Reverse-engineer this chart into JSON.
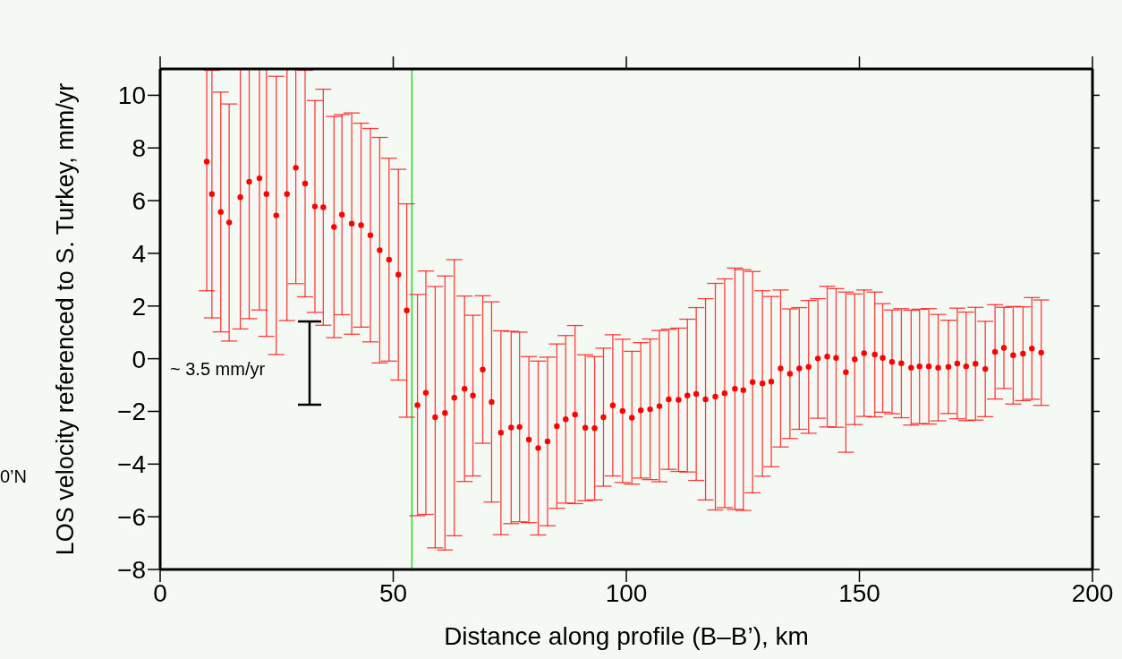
{
  "chart_data": {
    "type": "scatter",
    "xlabel": "Distance along profile (B–B’), km",
    "ylabel": "LOS velocity referenced to S. Turkey, mm/yr",
    "annotations": [
      "~ 3.5 mm/yr",
      "0’N"
    ],
    "x": [
      10.0,
      11.1,
      13.0,
      14.8,
      17.2,
      19.1,
      21.3,
      22.8,
      24.9,
      27.2,
      29.1,
      31.1,
      33.2,
      35.0,
      37.3,
      39.0,
      41.1,
      43.1,
      45.1,
      47.1,
      49.1,
      51.1,
      52.9,
      55.2,
      57.0,
      59.0,
      61.1,
      63.1,
      65.3,
      67.1,
      69.2,
      71.1,
      73.1,
      75.3,
      77.1,
      79.1,
      81.1,
      83.1,
      85.1,
      87.0,
      89.0,
      91.2,
      93.2,
      95.1,
      97.1,
      99.2,
      101.2,
      103.1,
      105.1,
      107.1,
      109.1,
      111.2,
      113.1,
      115.0,
      117.0,
      119.1,
      121.1,
      123.3,
      125.1,
      127.1,
      129.2,
      131.1,
      133.1,
      135.1,
      137.1,
      139.1,
      141.1,
      143.1,
      145.0,
      147.1,
      149.0,
      151.0,
      153.3,
      155.0,
      157.0,
      159.0,
      161.1,
      162.9,
      164.9,
      166.9,
      169.1,
      171.0,
      172.9,
      174.9,
      177.0,
      179.1,
      181.0,
      183.0,
      185.1,
      187.0,
      189.0
    ],
    "values": [
      7.48,
      6.25,
      5.57,
      5.17,
      6.13,
      6.72,
      6.85,
      6.25,
      5.44,
      6.25,
      7.25,
      6.65,
      5.78,
      5.75,
      5.0,
      5.47,
      5.13,
      5.07,
      4.69,
      4.12,
      3.76,
      3.19,
      1.83,
      -1.76,
      -1.29,
      -2.22,
      -2.06,
      -1.48,
      -1.14,
      -1.4,
      -0.41,
      -1.64,
      -2.81,
      -2.61,
      -2.59,
      -3.07,
      -3.39,
      -3.14,
      -2.56,
      -2.3,
      -2.12,
      -2.62,
      -2.64,
      -2.22,
      -1.77,
      -1.98,
      -2.24,
      -1.96,
      -1.92,
      -1.8,
      -1.54,
      -1.56,
      -1.4,
      -1.34,
      -1.54,
      -1.44,
      -1.31,
      -1.14,
      -1.19,
      -0.89,
      -0.94,
      -0.87,
      -0.37,
      -0.57,
      -0.37,
      -0.31,
      0.01,
      0.08,
      0.03,
      -0.51,
      -0.02,
      0.21,
      0.16,
      0.03,
      -0.12,
      -0.17,
      -0.34,
      -0.29,
      -0.29,
      -0.34,
      -0.31,
      -0.18,
      -0.29,
      -0.19,
      -0.39,
      0.26,
      0.41,
      0.13,
      0.19,
      0.39,
      0.23
    ],
    "errors": [
      [
        2.58,
        11
      ],
      4.7,
      4.55,
      4.5,
      [
        1.13,
        11
      ],
      [
        1.52,
        11
      ],
      [
        1.85,
        11
      ],
      [
        0.85,
        11
      ],
      5.28,
      [
        1.45,
        11
      ],
      [
        2.85,
        11
      ],
      4.3,
      4.02,
      4.48,
      4.2,
      3.8,
      4.2,
      3.87,
      4.05,
      4.28,
      3.85,
      4.0,
      4.05,
      4.2,
      4.62,
      4.96,
      5.2,
      5.24,
      3.52,
      3.05,
      2.8,
      3.8,
      3.87,
      3.65,
      3.6,
      3.15,
      3.3,
      3.2,
      3.12,
      3.18,
      3.38,
      2.77,
      2.72,
      2.62,
      2.68,
      2.72,
      2.52,
      2.57,
      2.67,
      2.87,
      2.66,
      2.72,
      2.9,
      3.28,
      3.82,
      4.3,
      4.34,
      4.58,
      4.57,
      4.2,
      3.52,
      3.23,
      2.98,
      2.46,
      2.31,
      2.52,
      2.27,
      2.67,
      2.63,
      3.04,
      2.48,
      2.4,
      2.37,
      2.06,
      1.97,
      2.07,
      2.18,
      2.17,
      2.19,
      2.02,
      1.77,
      2.1,
      2.06,
      2.14,
      1.81,
      1.79,
      1.54,
      1.85,
      1.78,
      1.93,
      2.0
    ],
    "color": "#ff0000",
    "marker": "circle",
    "xlim": [
      0,
      200
    ],
    "xticks": [
      0,
      50,
      100,
      150,
      200
    ],
    "ylim": [
      -8,
      11
    ],
    "yticks": [
      -8,
      -6,
      -4,
      -2,
      0,
      2,
      4,
      6,
      8,
      10
    ],
    "ref_lines": [
      {
        "axis": "x",
        "value": 54,
        "color": "#22dd22"
      }
    ],
    "grid": false,
    "legend": false
  }
}
